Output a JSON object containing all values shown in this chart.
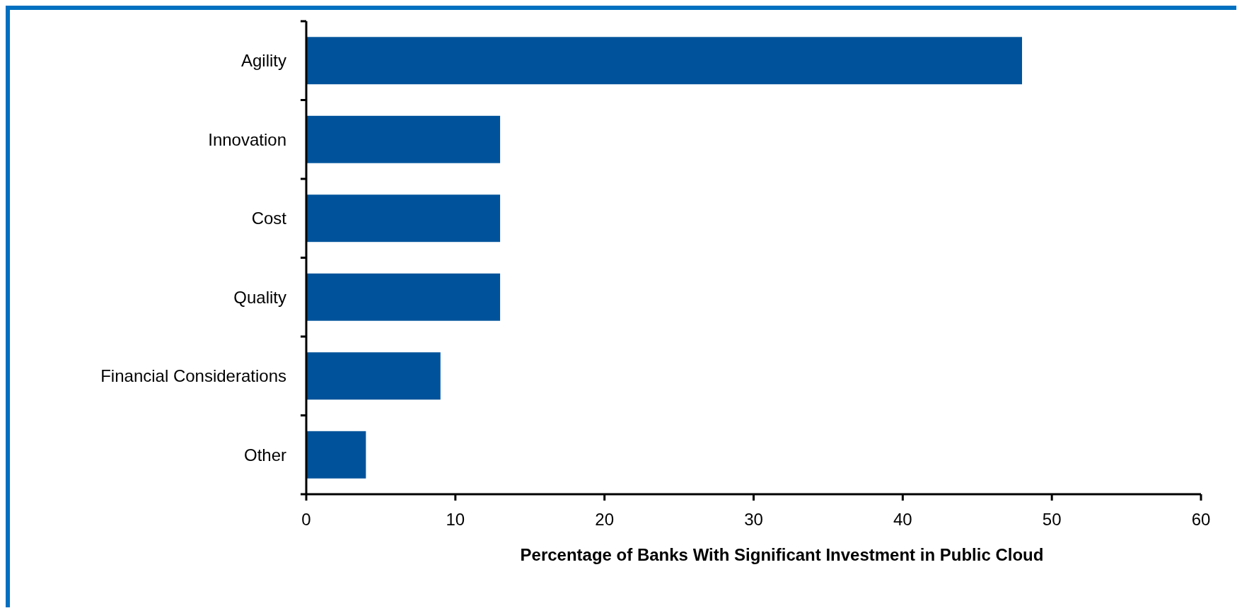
{
  "chart_data": {
    "type": "bar",
    "orientation": "horizontal",
    "xlabel": "Percentage of Banks With Significant Investment in Public Cloud",
    "categories": [
      "Agility",
      "Innovation",
      "Cost",
      "Quality",
      "Financial Considerations",
      "Other"
    ],
    "values": [
      48,
      13,
      13,
      13,
      9,
      4
    ],
    "color": "#00539b",
    "xlim": [
      0,
      60
    ],
    "xticks": [
      0,
      10,
      20,
      30,
      40,
      50,
      60
    ],
    "grid": false
  }
}
